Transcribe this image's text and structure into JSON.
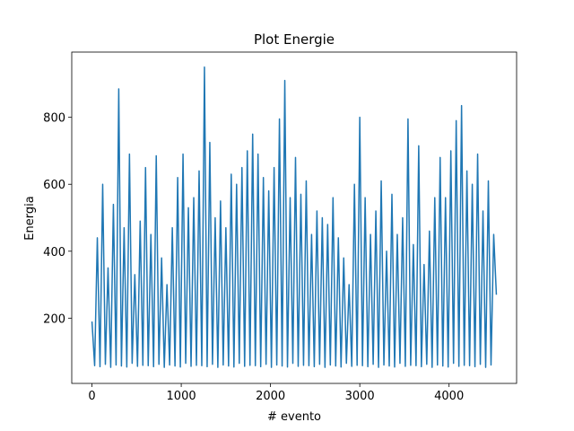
{
  "chart_data": {
    "type": "line",
    "title": "Plot Energie",
    "x_label": "# evento",
    "y_label": "Energia",
    "x": [
      0,
      30,
      60,
      90,
      120,
      150,
      180,
      210,
      240,
      270,
      300,
      330,
      360,
      390,
      420,
      450,
      480,
      510,
      540,
      570,
      600,
      630,
      660,
      690,
      720,
      750,
      780,
      810,
      840,
      870,
      900,
      930,
      960,
      990,
      1020,
      1050,
      1080,
      1110,
      1140,
      1170,
      1200,
      1230,
      1260,
      1290,
      1320,
      1350,
      1380,
      1410,
      1440,
      1470,
      1500,
      1530,
      1560,
      1590,
      1620,
      1650,
      1680,
      1710,
      1740,
      1770,
      1800,
      1830,
      1860,
      1890,
      1920,
      1950,
      1980,
      2010,
      2040,
      2070,
      2100,
      2130,
      2160,
      2190,
      2220,
      2250,
      2280,
      2310,
      2340,
      2370,
      2400,
      2430,
      2460,
      2490,
      2520,
      2550,
      2580,
      2610,
      2640,
      2670,
      2700,
      2730,
      2760,
      2790,
      2820,
      2850,
      2880,
      2910,
      2940,
      2970,
      3000,
      3030,
      3060,
      3090,
      3120,
      3150,
      3180,
      3210,
      3240,
      3270,
      3300,
      3330,
      3360,
      3390,
      3420,
      3450,
      3480,
      3510,
      3540,
      3570,
      3600,
      3630,
      3660,
      3690,
      3720,
      3750,
      3780,
      3810,
      3840,
      3870,
      3900,
      3930,
      3960,
      3990,
      4020,
      4050,
      4080,
      4110,
      4140,
      4170,
      4200,
      4230,
      4260,
      4290,
      4320,
      4350,
      4380,
      4410,
      4440,
      4470,
      4500,
      4530
    ],
    "values": [
      190,
      58,
      440,
      55,
      600,
      62,
      350,
      53,
      540,
      60,
      885,
      57,
      470,
      54,
      690,
      65,
      330,
      56,
      490,
      59,
      650,
      58,
      450,
      55,
      685,
      62,
      380,
      53,
      300,
      60,
      470,
      57,
      620,
      54,
      690,
      65,
      530,
      56,
      560,
      59,
      640,
      58,
      950,
      55,
      725,
      62,
      500,
      53,
      550,
      60,
      470,
      57,
      630,
      54,
      600,
      65,
      650,
      56,
      700,
      59,
      750,
      58,
      690,
      55,
      620,
      62,
      580,
      53,
      650,
      60,
      795,
      57,
      910,
      54,
      560,
      65,
      680,
      56,
      570,
      59,
      610,
      58,
      450,
      55,
      520,
      62,
      500,
      53,
      480,
      60,
      560,
      57,
      440,
      54,
      380,
      65,
      300,
      56,
      600,
      59,
      800,
      58,
      560,
      55,
      450,
      62,
      520,
      53,
      610,
      60,
      400,
      57,
      570,
      54,
      450,
      65,
      500,
      56,
      795,
      59,
      420,
      58,
      715,
      55,
      360,
      62,
      460,
      53,
      560,
      60,
      680,
      57,
      560,
      54,
      700,
      65,
      790,
      56,
      835,
      59,
      640,
      58,
      600,
      55,
      690,
      62,
      520,
      53,
      610,
      60,
      450,
      270
    ],
    "color": "#1f77b4",
    "xlim": [
      -226.5,
      4756.5
    ],
    "ylim": [
      5,
      995
    ],
    "xticks": [
      0,
      1000,
      2000,
      3000,
      4000
    ],
    "yticks": [
      200,
      400,
      600,
      800
    ]
  }
}
